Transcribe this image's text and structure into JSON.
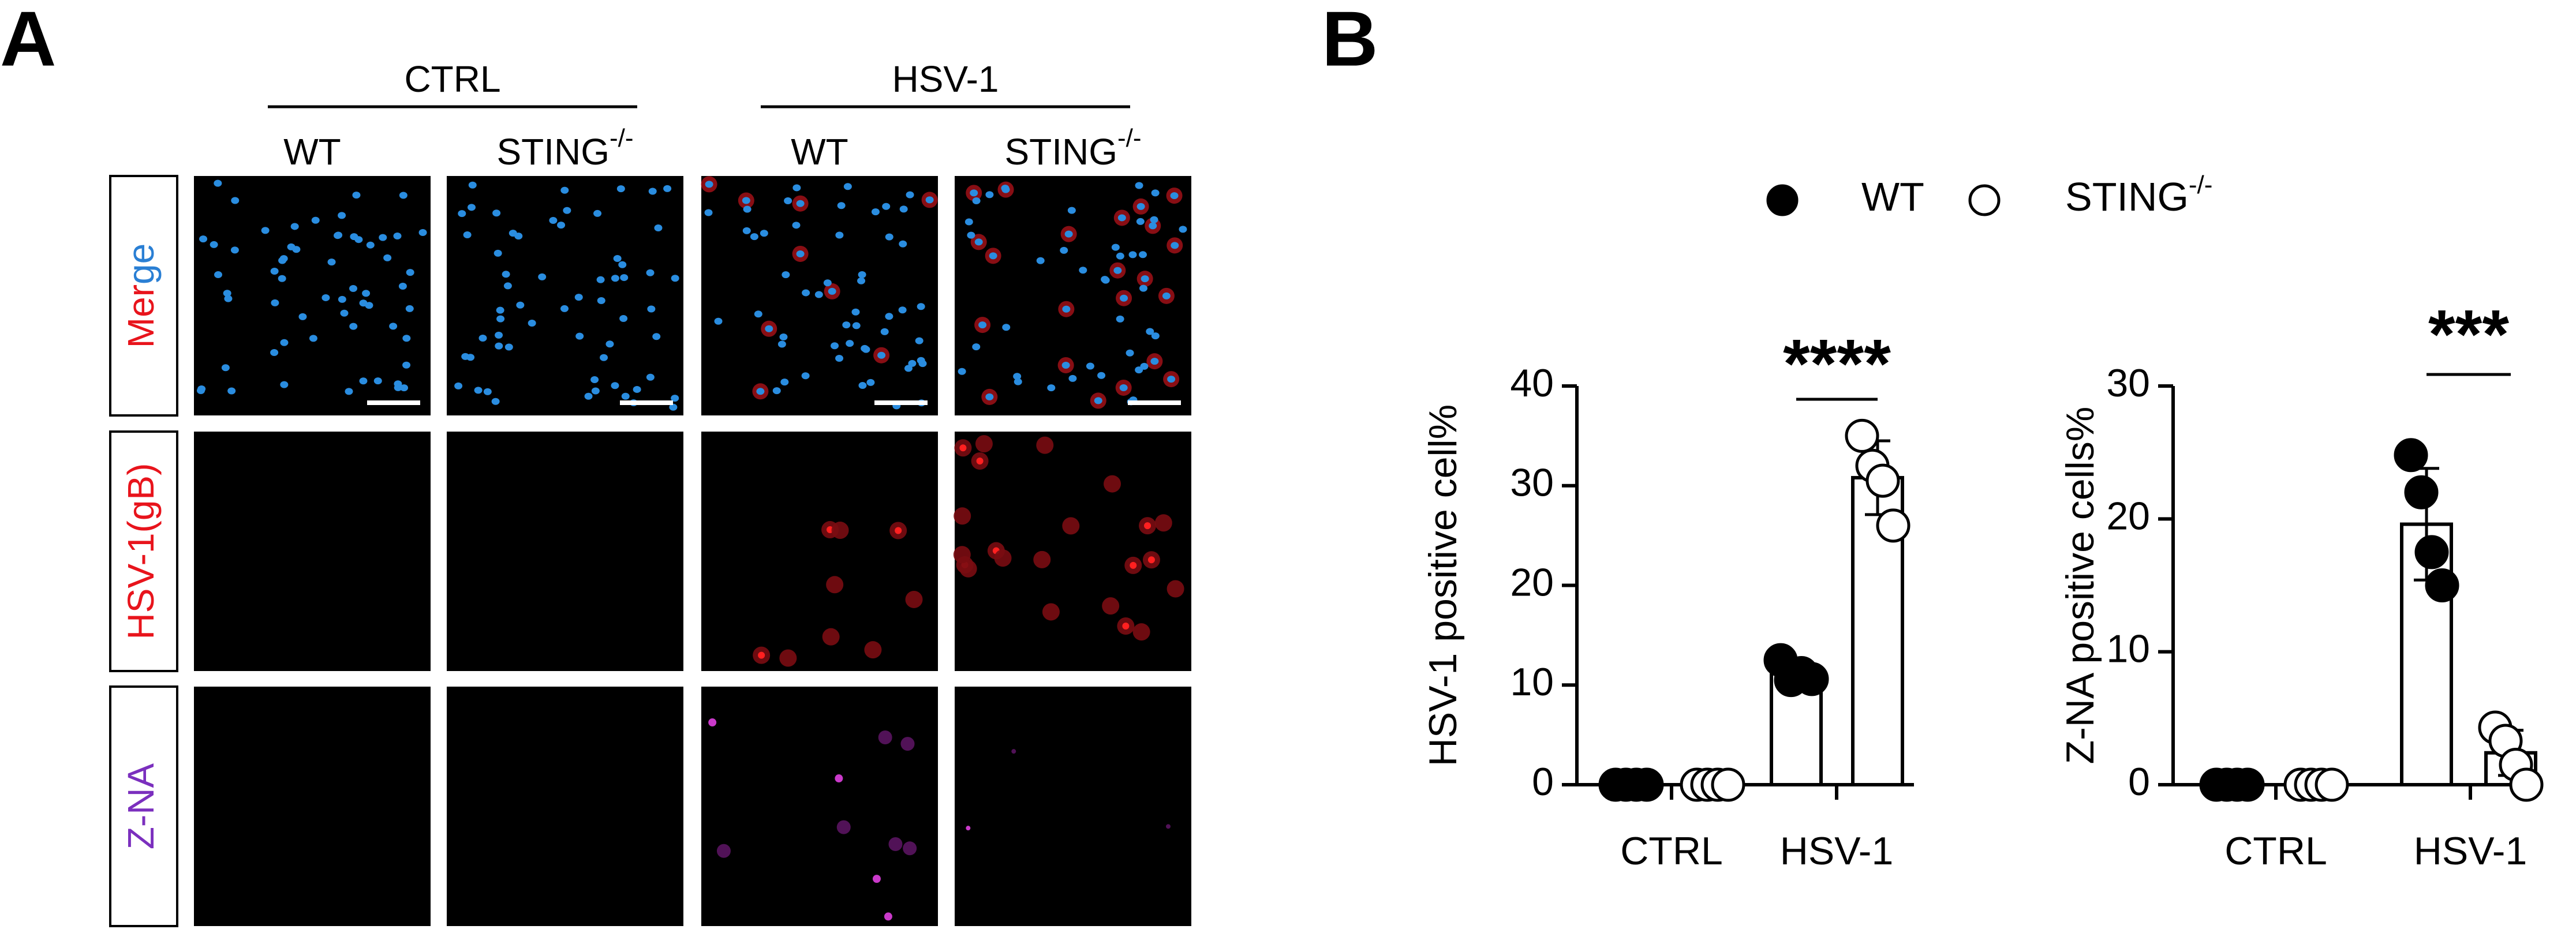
{
  "panel_a": {
    "label": "A",
    "groups": [
      "CTRL",
      "HSV-1"
    ],
    "columns": [
      {
        "text": "WT"
      },
      {
        "text": "STING",
        "sup": "-/-"
      },
      {
        "text": "WT"
      },
      {
        "text": "STING",
        "sup": "-/-"
      }
    ],
    "rows": [
      {
        "parts": [
          "Mer",
          "ge"
        ],
        "colors": [
          "#e8141c",
          "#2a7fd4"
        ]
      },
      {
        "parts": [
          "HSV-1(gB)"
        ],
        "colors": [
          "#e8141c"
        ]
      },
      {
        "parts": [
          "Z-NA"
        ],
        "colors": [
          "#7b2fbe"
        ]
      }
    ]
  },
  "panel_b_label": "B",
  "chart_data": [
    {
      "type": "bar",
      "y_label": "HSV-1 positive cell%",
      "categories": [
        "CTRL",
        "HSV-1"
      ],
      "series": [
        {
          "name": "WT",
          "color": "#000000",
          "marker_fill": "#000000",
          "values": [
            0,
            11.2
          ],
          "errors": [
            0,
            1.0
          ],
          "points": [
            [
              0,
              0,
              0,
              0
            ],
            [
              12.5,
              10.5,
              11.2,
              10.6
            ]
          ]
        },
        {
          "name": "STING",
          "name_sup": "-/-",
          "color": "#000000",
          "marker_fill": "#ffffff",
          "values": [
            0,
            30.8
          ],
          "errors": [
            0,
            3.7
          ],
          "points": [
            [
              0,
              0,
              0,
              0
            ],
            [
              35,
              32,
              30.5,
              26
            ]
          ]
        }
      ],
      "annotations": [
        "****"
      ],
      "ylim": [
        0,
        40
      ],
      "yticks": [
        0,
        10,
        20,
        30,
        40
      ]
    },
    {
      "type": "bar",
      "y_label": "Z-NA positive cells%",
      "categories": [
        "CTRL",
        "HSV-1"
      ],
      "series": [
        {
          "color": "#000000",
          "marker_fill": "#000000",
          "values": [
            0,
            19.6
          ],
          "errors": [
            0,
            4.2
          ],
          "points": [
            [
              0,
              0,
              0,
              0
            ],
            [
              24.8,
              22,
              17.5,
              15
            ]
          ]
        },
        {
          "color": "#000000",
          "marker_fill": "#ffffff",
          "values": [
            0,
            2.4
          ],
          "errors": [
            0,
            1.7
          ],
          "points": [
            [
              0,
              0,
              0,
              0
            ],
            [
              4.3,
              3.3,
              1.5,
              0
            ]
          ]
        }
      ],
      "annotations": [
        "***"
      ],
      "ylim": [
        0,
        30
      ],
      "yticks": [
        0,
        10,
        20,
        30
      ]
    }
  ]
}
